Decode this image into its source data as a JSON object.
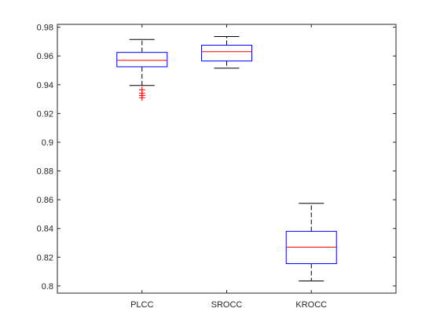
{
  "chart_data": {
    "type": "boxplot",
    "title": "",
    "xlabel": "",
    "ylabel": "",
    "categories": [
      "PLCC",
      "SROCC",
      "KROCC"
    ],
    "ylim": [
      0.795,
      0.982
    ],
    "yticks": [
      "0.8",
      "0.82",
      "0.84",
      "0.86",
      "0.88",
      "0.9",
      "0.92",
      "0.94",
      "0.96",
      "0.98"
    ],
    "ytick_values": [
      0.8,
      0.82,
      0.84,
      0.86,
      0.88,
      0.9,
      0.92,
      0.94,
      0.96,
      0.98
    ],
    "grid": false,
    "boxes": [
      {
        "category": "PLCC",
        "whisker_low": 0.9395,
        "q1": 0.9525,
        "median": 0.957,
        "q3": 0.9625,
        "whisker_high": 0.9715,
        "outliers": [
          0.9365,
          0.934,
          0.9325,
          0.931
        ]
      },
      {
        "category": "SROCC",
        "whisker_low": 0.9515,
        "q1": 0.9565,
        "median": 0.963,
        "q3": 0.9675,
        "whisker_high": 0.9735,
        "outliers": []
      },
      {
        "category": "KROCC",
        "whisker_low": 0.8035,
        "q1": 0.8155,
        "median": 0.827,
        "q3": 0.838,
        "whisker_high": 0.8575,
        "outliers": []
      }
    ],
    "colors": {
      "box": "#0000ff",
      "median": "#ff0000",
      "whisker": "#000000",
      "outlier": "#ff0000",
      "axis": "#262626"
    }
  }
}
